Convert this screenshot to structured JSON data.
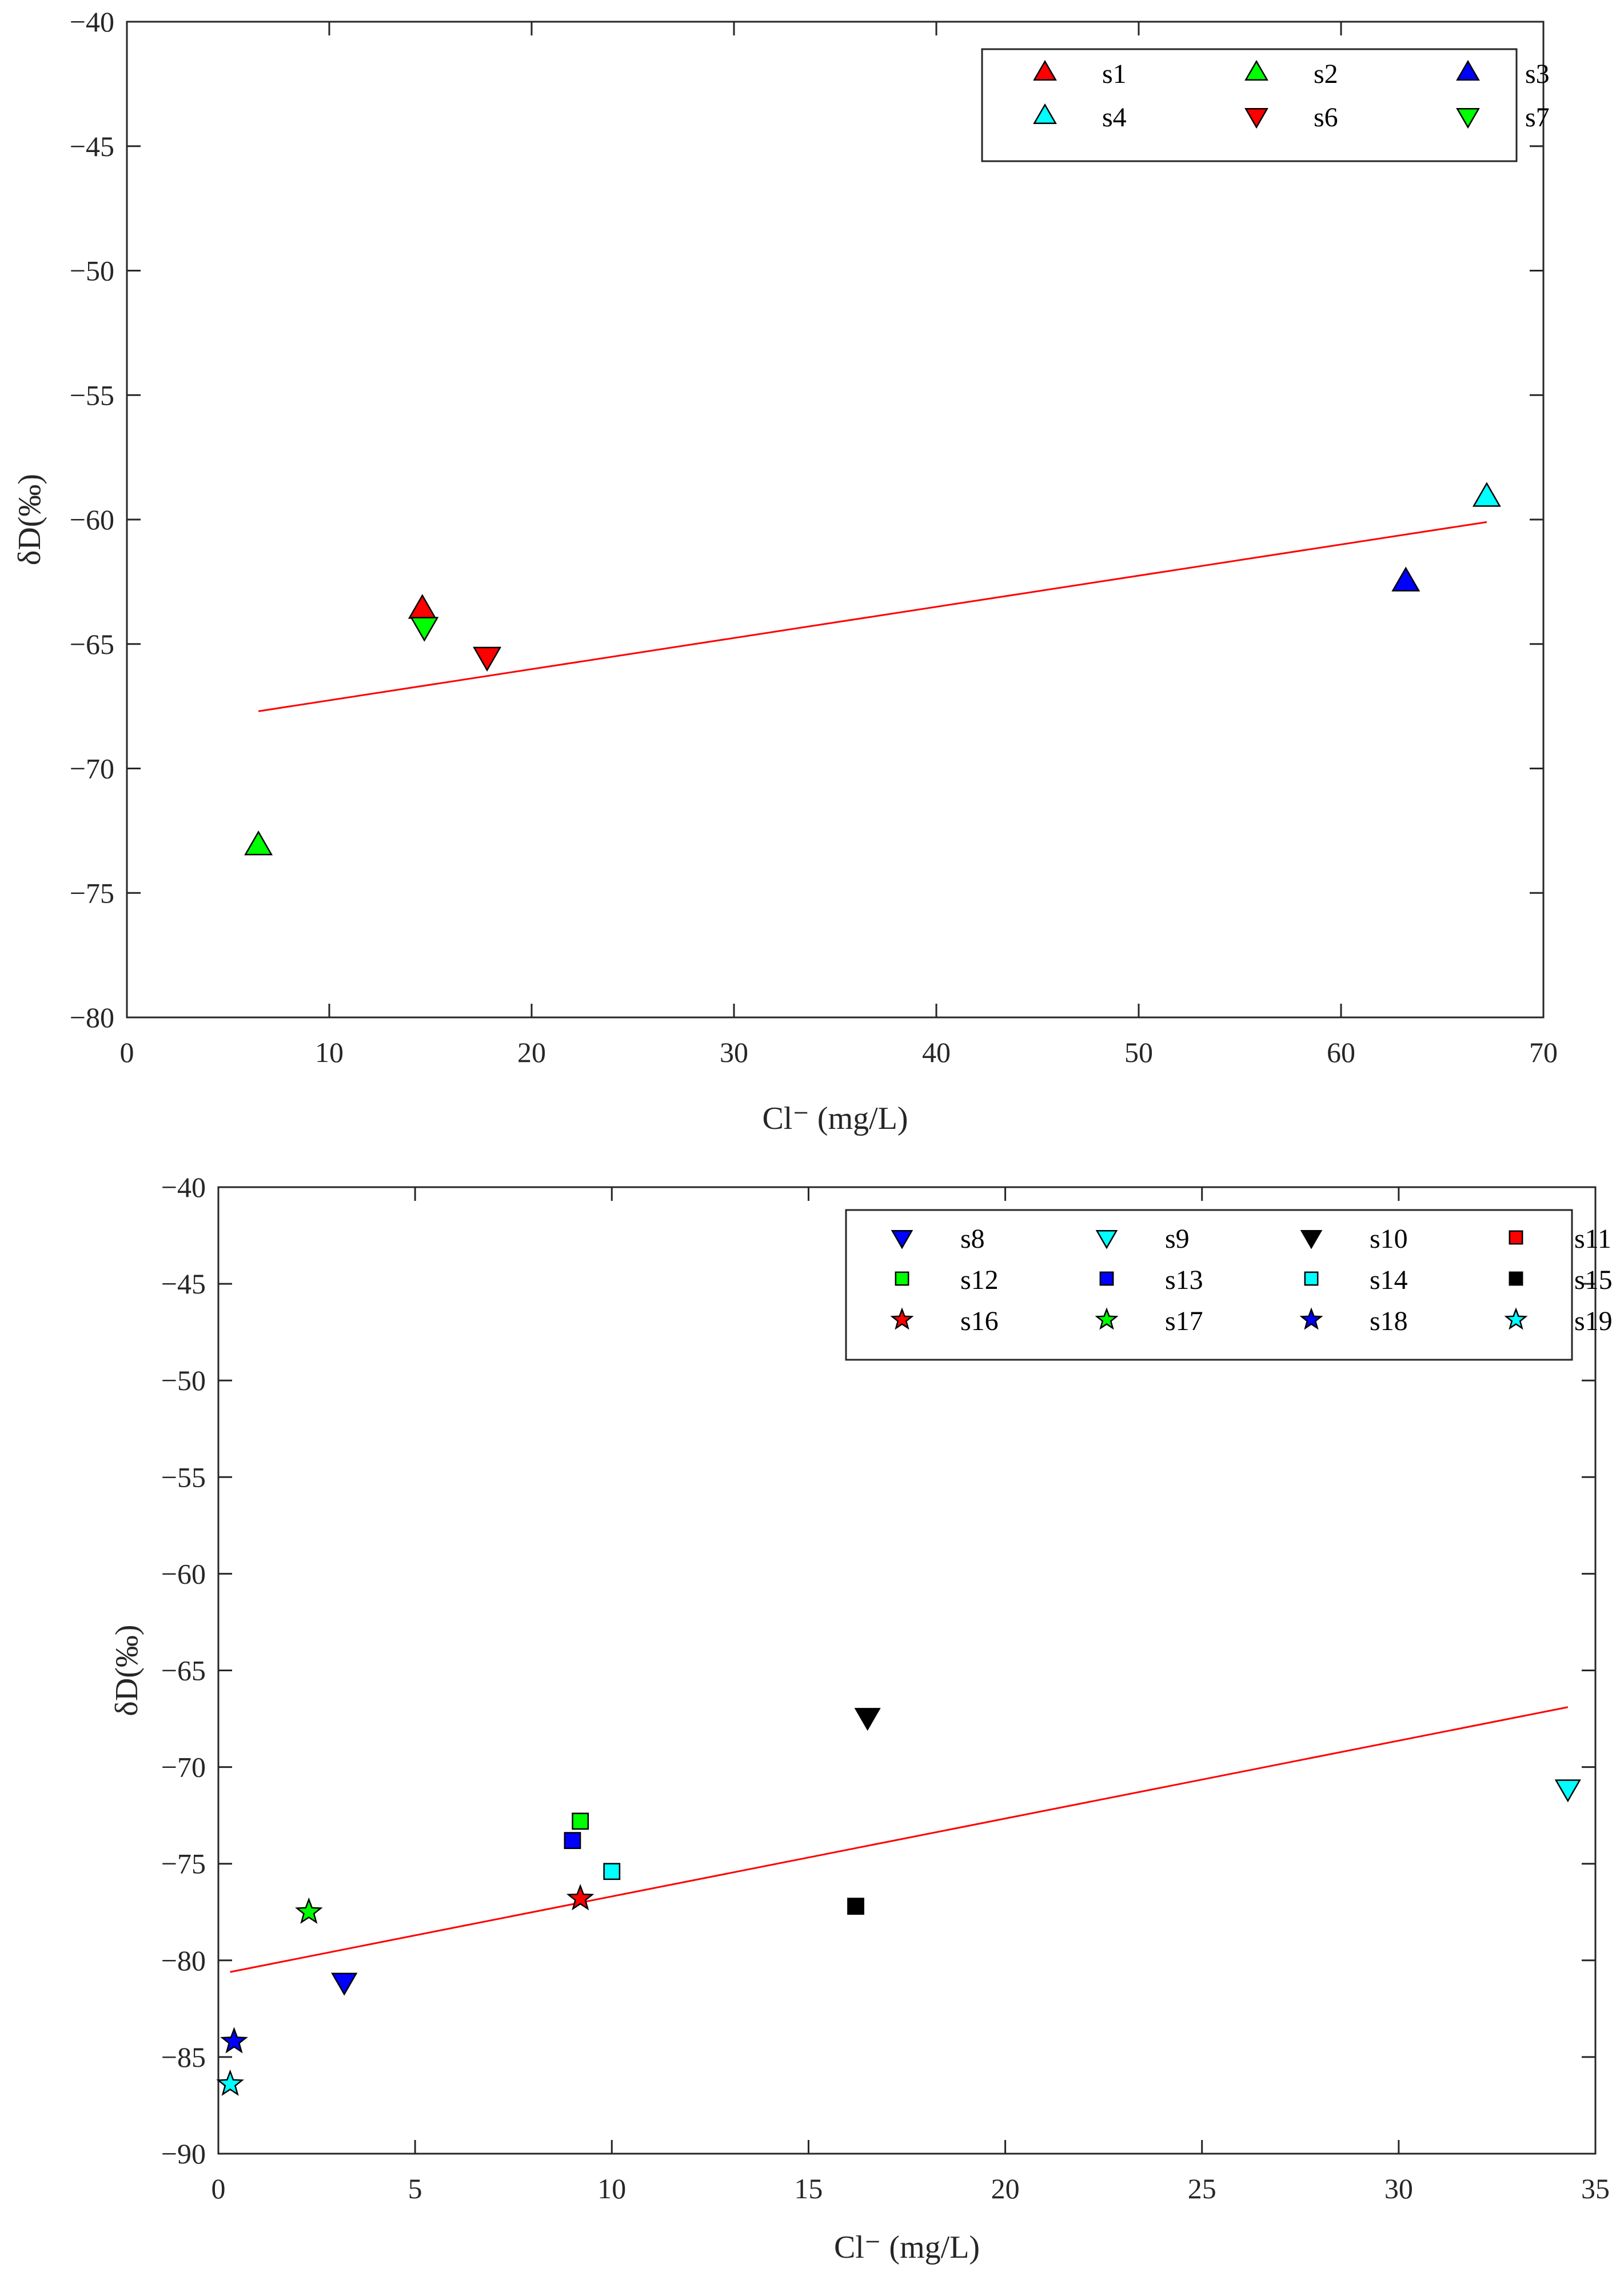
{
  "chart_data": [
    {
      "type": "scatter",
      "title": "",
      "xlabel": "Cl⁻ (mg/L)",
      "ylabel": "δD(‰)",
      "xlim": [
        0,
        70
      ],
      "ylim": [
        -80,
        -40
      ],
      "xticks": [
        0,
        10,
        20,
        30,
        40,
        50,
        60,
        70
      ],
      "yticks": [
        -40,
        -45,
        -50,
        -55,
        -60,
        -65,
        -70,
        -75,
        -80
      ],
      "xtick_labels": [
        "0",
        "10",
        "20",
        "30",
        "40",
        "50",
        "60",
        "70"
      ],
      "ytick_labels": [
        "−40",
        "−45",
        "−50",
        "−55",
        "−60",
        "−65",
        "−70",
        "−75",
        "−80"
      ],
      "legend_position": "top-right",
      "legend_columns": 3,
      "series": [
        {
          "name": "s1",
          "marker": "triangle-up",
          "color": "#ff0000",
          "x": 14.6,
          "y": -63.6
        },
        {
          "name": "s2",
          "marker": "triangle-up",
          "color": "#00ff00",
          "x": 6.5,
          "y": -73.1
        },
        {
          "name": "s3",
          "marker": "triangle-up",
          "color": "#0000ff",
          "x": 63.2,
          "y": -62.5
        },
        {
          "name": "s4",
          "marker": "triangle-up",
          "color": "#00ffff",
          "x": 67.2,
          "y": -59.1
        },
        {
          "name": "s6",
          "marker": "triangle-down",
          "color": "#ff0000",
          "x": 17.8,
          "y": -65.5
        },
        {
          "name": "s7",
          "marker": "triangle-down",
          "color": "#00ff00",
          "x": 14.7,
          "y": -64.3
        }
      ],
      "fit_line": {
        "color": "#ff0000",
        "x": [
          6.5,
          67.2
        ],
        "y": [
          -67.7,
          -60.1
        ]
      }
    },
    {
      "type": "scatter",
      "title": "",
      "xlabel": "Cl⁻ (mg/L)",
      "ylabel": "δD(‰)",
      "xlim": [
        0,
        35
      ],
      "ylim": [
        -90,
        -40
      ],
      "xticks": [
        0,
        5,
        10,
        15,
        20,
        25,
        30,
        35
      ],
      "yticks": [
        -40,
        -45,
        -50,
        -55,
        -60,
        -65,
        -70,
        -75,
        -80,
        -85,
        -90
      ],
      "xtick_labels": [
        "0",
        "5",
        "10",
        "15",
        "20",
        "25",
        "30",
        "35"
      ],
      "ytick_labels": [
        "−40",
        "−45",
        "−50",
        "−55",
        "−60",
        "−65",
        "−70",
        "−75",
        "−80",
        "−85",
        "−90"
      ],
      "legend_position": "top-right",
      "legend_columns": 4,
      "series": [
        {
          "name": "s8",
          "marker": "triangle-down",
          "color": "#0000ff",
          "x": 3.2,
          "y": -81.1
        },
        {
          "name": "s9",
          "marker": "triangle-down",
          "color": "#00ffff",
          "x": 34.3,
          "y": -71.1
        },
        {
          "name": "s10",
          "marker": "triangle-down",
          "color": "#000000",
          "x": 16.5,
          "y": -67.4
        },
        {
          "name": "s11",
          "marker": "square",
          "color": "#ff0000",
          "x": null,
          "y": null
        },
        {
          "name": "s12",
          "marker": "square",
          "color": "#00ff00",
          "x": 9.2,
          "y": -72.8
        },
        {
          "name": "s13",
          "marker": "square",
          "color": "#0000ff",
          "x": 9.0,
          "y": -73.8
        },
        {
          "name": "s14",
          "marker": "square",
          "color": "#00ffff",
          "x": 10.0,
          "y": -75.4
        },
        {
          "name": "s15",
          "marker": "square",
          "color": "#000000",
          "x": 16.2,
          "y": -77.2
        },
        {
          "name": "s16",
          "marker": "star",
          "color": "#ff0000",
          "x": 9.2,
          "y": -76.8
        },
        {
          "name": "s17",
          "marker": "star",
          "color": "#00ff00",
          "x": 2.3,
          "y": -77.5
        },
        {
          "name": "s18",
          "marker": "star",
          "color": "#0000ff",
          "x": 0.4,
          "y": -84.2
        },
        {
          "name": "s19",
          "marker": "star",
          "color": "#00ffff",
          "x": 0.3,
          "y": -86.4
        }
      ],
      "fit_line": {
        "color": "#ff0000",
        "x": [
          0.3,
          34.3
        ],
        "y": [
          -80.6,
          -66.9
        ]
      }
    }
  ]
}
